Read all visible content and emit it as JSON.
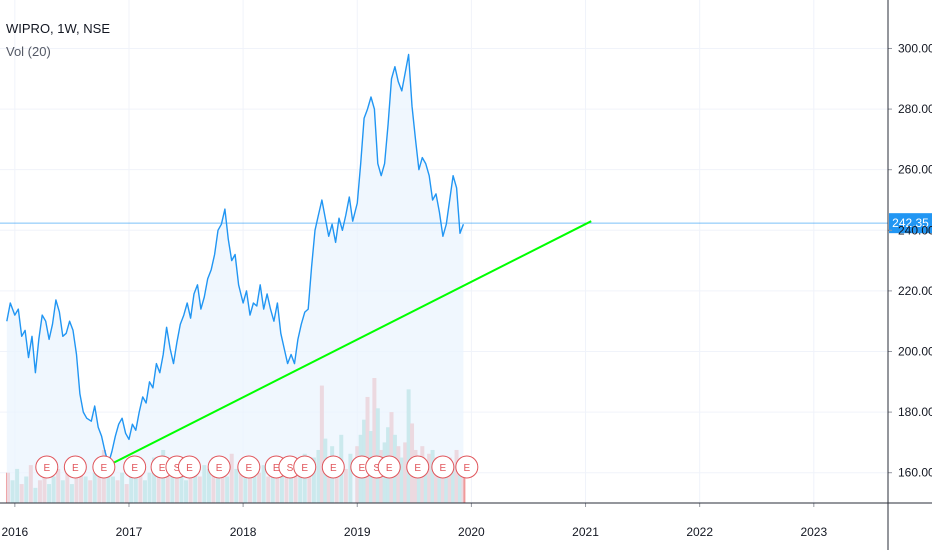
{
  "legend": {
    "symbol_line": "WIPRO, 1W, NSE",
    "volume_label": "Vol (20)"
  },
  "colors": {
    "price_line": "#2196f3",
    "price_fill": "#eaf3fd",
    "trendline": "#00ff00",
    "current_price_tag": "#2196f3",
    "volume_up": "#82cfc6",
    "volume_down": "#f09a9a",
    "grid": "#f0f3fa",
    "event_marker": "#e0555b"
  },
  "chart_data": {
    "type": "line",
    "title": "WIPRO, 1W, NSE",
    "ylim": [
      150,
      316
    ],
    "y_ticks": [
      "160.00",
      "180.00",
      "200.00",
      "220.00",
      "240.00",
      "260.00",
      "280.00",
      "300.00"
    ],
    "x_ticks": [
      "2016",
      "2017",
      "2018",
      "2019",
      "2020",
      "2021",
      "2022",
      "2023"
    ],
    "current_price": 242.35,
    "current_price_label": "242.35",
    "price_series": {
      "name": "WIPRO",
      "points": [
        [
          2015.93,
          210
        ],
        [
          2015.96,
          216
        ],
        [
          2016.0,
          212
        ],
        [
          2016.03,
          214
        ],
        [
          2016.06,
          205
        ],
        [
          2016.09,
          207
        ],
        [
          2016.12,
          198
        ],
        [
          2016.15,
          205
        ],
        [
          2016.18,
          193
        ],
        [
          2016.21,
          204
        ],
        [
          2016.24,
          212
        ],
        [
          2016.27,
          210
        ],
        [
          2016.3,
          204
        ],
        [
          2016.33,
          209
        ],
        [
          2016.36,
          217
        ],
        [
          2016.39,
          213
        ],
        [
          2016.42,
          205
        ],
        [
          2016.45,
          206
        ],
        [
          2016.48,
          210
        ],
        [
          2016.51,
          207
        ],
        [
          2016.54,
          199
        ],
        [
          2016.57,
          186
        ],
        [
          2016.6,
          180
        ],
        [
          2016.63,
          178
        ],
        [
          2016.67,
          177
        ],
        [
          2016.7,
          182
        ],
        [
          2016.73,
          175
        ],
        [
          2016.76,
          172
        ],
        [
          2016.79,
          167
        ],
        [
          2016.82,
          163
        ],
        [
          2016.85,
          167
        ],
        [
          2016.88,
          172
        ],
        [
          2016.91,
          176
        ],
        [
          2016.94,
          178
        ],
        [
          2016.97,
          173
        ],
        [
          2017.0,
          171
        ],
        [
          2017.03,
          176
        ],
        [
          2017.06,
          174
        ],
        [
          2017.09,
          180
        ],
        [
          2017.12,
          185
        ],
        [
          2017.15,
          183
        ],
        [
          2017.18,
          190
        ],
        [
          2017.21,
          188
        ],
        [
          2017.24,
          196
        ],
        [
          2017.27,
          193
        ],
        [
          2017.3,
          199
        ],
        [
          2017.33,
          208
        ],
        [
          2017.36,
          201
        ],
        [
          2017.39,
          196
        ],
        [
          2017.42,
          203
        ],
        [
          2017.45,
          209
        ],
        [
          2017.48,
          212
        ],
        [
          2017.51,
          216
        ],
        [
          2017.54,
          211
        ],
        [
          2017.57,
          219
        ],
        [
          2017.6,
          222
        ],
        [
          2017.63,
          214
        ],
        [
          2017.66,
          218
        ],
        [
          2017.69,
          224
        ],
        [
          2017.72,
          227
        ],
        [
          2017.75,
          232
        ],
        [
          2017.78,
          240
        ],
        [
          2017.81,
          242
        ],
        [
          2017.84,
          247
        ],
        [
          2017.87,
          237
        ],
        [
          2017.9,
          230
        ],
        [
          2017.93,
          232
        ],
        [
          2017.96,
          222
        ],
        [
          2018.0,
          216
        ],
        [
          2018.03,
          220
        ],
        [
          2018.06,
          212
        ],
        [
          2018.09,
          216
        ],
        [
          2018.12,
          215
        ],
        [
          2018.15,
          222
        ],
        [
          2018.18,
          214
        ],
        [
          2018.21,
          219
        ],
        [
          2018.24,
          214
        ],
        [
          2018.27,
          210
        ],
        [
          2018.3,
          216
        ],
        [
          2018.33,
          206
        ],
        [
          2018.36,
          201
        ],
        [
          2018.39,
          196
        ],
        [
          2018.42,
          199
        ],
        [
          2018.45,
          196
        ],
        [
          2018.48,
          204
        ],
        [
          2018.51,
          209
        ],
        [
          2018.54,
          213
        ],
        [
          2018.57,
          214
        ],
        [
          2018.6,
          228
        ],
        [
          2018.63,
          240
        ],
        [
          2018.66,
          245
        ],
        [
          2018.69,
          250
        ],
        [
          2018.72,
          244
        ],
        [
          2018.75,
          238
        ],
        [
          2018.78,
          242
        ],
        [
          2018.81,
          236
        ],
        [
          2018.84,
          244
        ],
        [
          2018.87,
          240
        ],
        [
          2018.9,
          245
        ],
        [
          2018.93,
          251
        ],
        [
          2018.96,
          243
        ],
        [
          2019.0,
          249
        ],
        [
          2019.03,
          262
        ],
        [
          2019.06,
          277
        ],
        [
          2019.09,
          280
        ],
        [
          2019.12,
          284
        ],
        [
          2019.15,
          280
        ],
        [
          2019.18,
          262
        ],
        [
          2019.21,
          258
        ],
        [
          2019.24,
          262
        ],
        [
          2019.27,
          275
        ],
        [
          2019.3,
          290
        ],
        [
          2019.33,
          294
        ],
        [
          2019.36,
          289
        ],
        [
          2019.39,
          286
        ],
        [
          2019.42,
          292
        ],
        [
          2019.45,
          298
        ],
        [
          2019.48,
          281
        ],
        [
          2019.51,
          270
        ],
        [
          2019.54,
          260
        ],
        [
          2019.57,
          264
        ],
        [
          2019.6,
          262
        ],
        [
          2019.63,
          258
        ],
        [
          2019.66,
          250
        ],
        [
          2019.69,
          252
        ],
        [
          2019.72,
          246
        ],
        [
          2019.75,
          238
        ],
        [
          2019.78,
          242
        ],
        [
          2019.81,
          250
        ],
        [
          2019.84,
          258
        ],
        [
          2019.87,
          254
        ],
        [
          2019.9,
          239
        ],
        [
          2019.93,
          242
        ]
      ]
    },
    "volume": [
      [
        2015.94,
        8,
        "d"
      ],
      [
        2015.98,
        6,
        "u"
      ],
      [
        2016.02,
        9,
        "u"
      ],
      [
        2016.06,
        5,
        "d"
      ],
      [
        2016.1,
        7,
        "u"
      ],
      [
        2016.14,
        10,
        "d"
      ],
      [
        2016.18,
        4,
        "u"
      ],
      [
        2016.22,
        6,
        "d"
      ],
      [
        2016.26,
        12,
        "d"
      ],
      [
        2016.3,
        5,
        "u"
      ],
      [
        2016.34,
        7,
        "u"
      ],
      [
        2016.38,
        9,
        "d"
      ],
      [
        2016.42,
        6,
        "u"
      ],
      [
        2016.46,
        8,
        "d"
      ],
      [
        2016.5,
        5,
        "u"
      ],
      [
        2016.54,
        10,
        "d"
      ],
      [
        2016.58,
        9,
        "d"
      ],
      [
        2016.62,
        7,
        "u"
      ],
      [
        2016.66,
        6,
        "d"
      ],
      [
        2016.7,
        8,
        "u"
      ],
      [
        2016.74,
        10,
        "d"
      ],
      [
        2016.78,
        14,
        "d"
      ],
      [
        2016.82,
        9,
        "u"
      ],
      [
        2016.86,
        7,
        "u"
      ],
      [
        2016.9,
        6,
        "d"
      ],
      [
        2016.94,
        8,
        "u"
      ],
      [
        2016.98,
        5,
        "d"
      ],
      [
        2017.02,
        9,
        "u"
      ],
      [
        2017.06,
        7,
        "u"
      ],
      [
        2017.1,
        10,
        "d"
      ],
      [
        2017.14,
        6,
        "u"
      ],
      [
        2017.18,
        8,
        "u"
      ],
      [
        2017.22,
        12,
        "u"
      ],
      [
        2017.26,
        9,
        "d"
      ],
      [
        2017.3,
        14,
        "u"
      ],
      [
        2017.34,
        8,
        "d"
      ],
      [
        2017.38,
        10,
        "u"
      ],
      [
        2017.42,
        7,
        "d"
      ],
      [
        2017.46,
        9,
        "u"
      ],
      [
        2017.5,
        6,
        "u"
      ],
      [
        2017.54,
        11,
        "d"
      ],
      [
        2017.58,
        8,
        "u"
      ],
      [
        2017.62,
        7,
        "d"
      ],
      [
        2017.66,
        10,
        "u"
      ],
      [
        2017.7,
        9,
        "u"
      ],
      [
        2017.74,
        12,
        "d"
      ],
      [
        2017.78,
        10,
        "u"
      ],
      [
        2017.82,
        8,
        "d"
      ],
      [
        2017.86,
        7,
        "u"
      ],
      [
        2017.9,
        13,
        "d"
      ],
      [
        2017.94,
        9,
        "u"
      ],
      [
        2017.98,
        8,
        "d"
      ],
      [
        2018.02,
        11,
        "u"
      ],
      [
        2018.06,
        7,
        "d"
      ],
      [
        2018.1,
        9,
        "u"
      ],
      [
        2018.14,
        8,
        "d"
      ],
      [
        2018.18,
        10,
        "u"
      ],
      [
        2018.22,
        7,
        "d"
      ],
      [
        2018.26,
        12,
        "u"
      ],
      [
        2018.3,
        9,
        "d"
      ],
      [
        2018.34,
        8,
        "u"
      ],
      [
        2018.38,
        11,
        "d"
      ],
      [
        2018.42,
        10,
        "u"
      ],
      [
        2018.46,
        9,
        "d"
      ],
      [
        2018.5,
        8,
        "u"
      ],
      [
        2018.54,
        13,
        "u"
      ],
      [
        2018.58,
        10,
        "d"
      ],
      [
        2018.62,
        12,
        "u"
      ],
      [
        2018.66,
        14,
        "u"
      ],
      [
        2018.69,
        31,
        "d"
      ],
      [
        2018.72,
        17,
        "u"
      ],
      [
        2018.75,
        11,
        "d"
      ],
      [
        2018.78,
        15,
        "u"
      ],
      [
        2018.82,
        12,
        "d"
      ],
      [
        2018.86,
        18,
        "u"
      ],
      [
        2018.9,
        9,
        "d"
      ],
      [
        2018.94,
        13,
        "u"
      ],
      [
        2019.0,
        15,
        "d"
      ],
      [
        2019.03,
        18,
        "u"
      ],
      [
        2019.06,
        22,
        "u"
      ],
      [
        2019.09,
        28,
        "d"
      ],
      [
        2019.12,
        19,
        "u"
      ],
      [
        2019.15,
        33,
        "d"
      ],
      [
        2019.18,
        25,
        "u"
      ],
      [
        2019.21,
        14,
        "d"
      ],
      [
        2019.24,
        16,
        "u"
      ],
      [
        2019.27,
        20,
        "u"
      ],
      [
        2019.3,
        24,
        "d"
      ],
      [
        2019.33,
        18,
        "u"
      ],
      [
        2019.36,
        15,
        "d"
      ],
      [
        2019.39,
        12,
        "u"
      ],
      [
        2019.42,
        16,
        "d"
      ],
      [
        2019.45,
        30,
        "u"
      ],
      [
        2019.48,
        21,
        "d"
      ],
      [
        2019.51,
        14,
        "d"
      ],
      [
        2019.54,
        12,
        "u"
      ],
      [
        2019.57,
        15,
        "d"
      ],
      [
        2019.6,
        11,
        "u"
      ],
      [
        2019.63,
        13,
        "d"
      ],
      [
        2019.66,
        14,
        "u"
      ],
      [
        2019.69,
        12,
        "d"
      ],
      [
        2019.72,
        9,
        "u"
      ],
      [
        2019.75,
        11,
        "d"
      ],
      [
        2019.78,
        8,
        "u"
      ],
      [
        2019.81,
        12,
        "d"
      ],
      [
        2019.84,
        10,
        "u"
      ],
      [
        2019.87,
        14,
        "d"
      ],
      [
        2019.9,
        9,
        "u"
      ],
      [
        2019.93,
        7,
        "d"
      ]
    ],
    "events": [
      {
        "x": 2016.28,
        "label": "E"
      },
      {
        "x": 2016.53,
        "label": "E"
      },
      {
        "x": 2016.78,
        "label": "E"
      },
      {
        "x": 2017.05,
        "label": "E"
      },
      {
        "x": 2017.29,
        "label": "E"
      },
      {
        "x": 2017.42,
        "label": "S"
      },
      {
        "x": 2017.53,
        "label": "E"
      },
      {
        "x": 2017.79,
        "label": "E"
      },
      {
        "x": 2018.05,
        "label": "E"
      },
      {
        "x": 2018.29,
        "label": "E"
      },
      {
        "x": 2018.41,
        "label": "S"
      },
      {
        "x": 2018.54,
        "label": "E"
      },
      {
        "x": 2018.79,
        "label": "E"
      },
      {
        "x": 2019.04,
        "label": "E"
      },
      {
        "x": 2019.17,
        "label": "S"
      },
      {
        "x": 2019.28,
        "label": "E"
      },
      {
        "x": 2019.53,
        "label": "E"
      },
      {
        "x": 2019.75,
        "label": "E"
      },
      {
        "x": 2019.96,
        "label": "E"
      }
    ],
    "trendline": {
      "start": [
        2016.85,
        163
      ],
      "end": [
        2021.05,
        243
      ]
    },
    "xlim": [
      2015.87,
      2023.65
    ]
  }
}
